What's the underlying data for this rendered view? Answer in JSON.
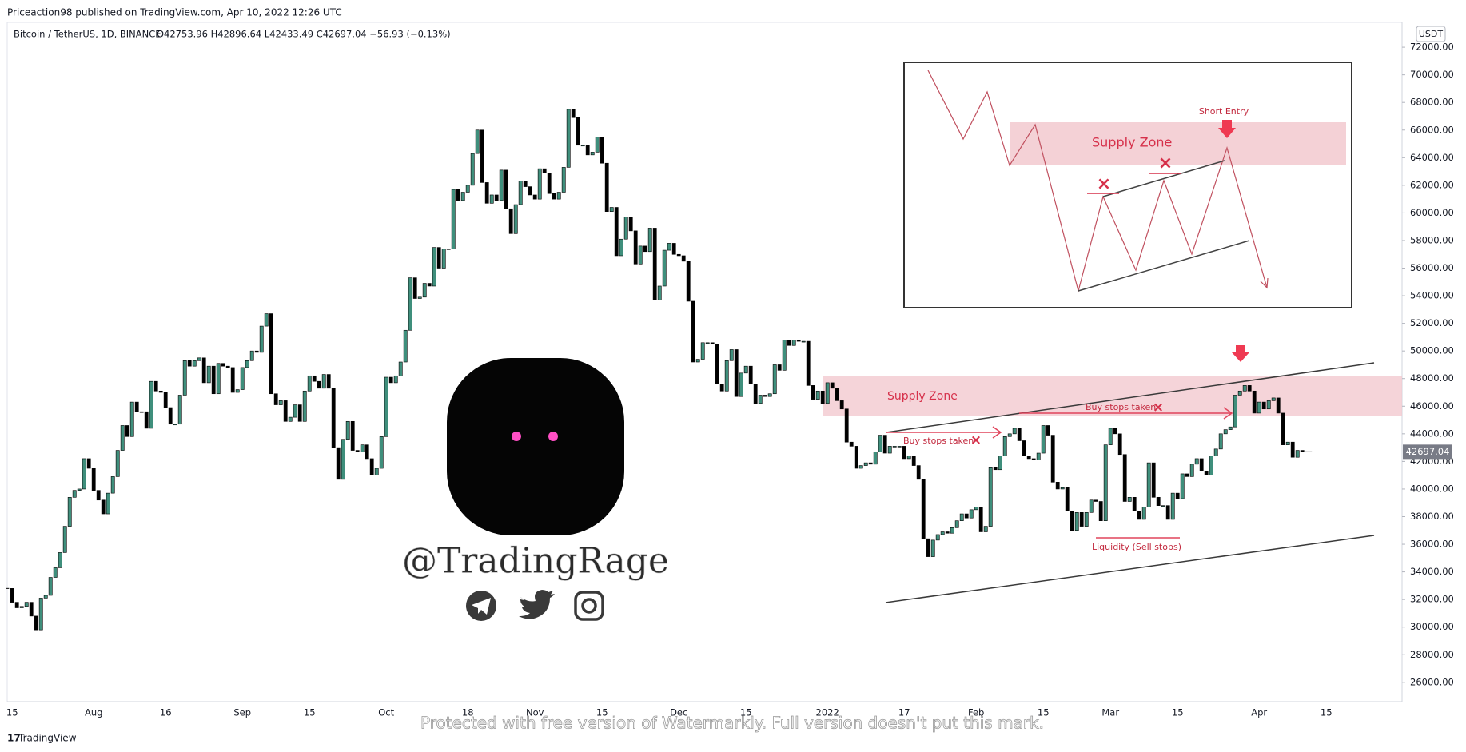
{
  "header": {
    "publisher": "Priceaction98 published on TradingView.com, Apr 10, 2022 12:26 UTC"
  },
  "footer": "TradingView",
  "watermark": "Protected with free version of Watermarkly. Full version doesn't put this mark.",
  "handle": "@TradingRage",
  "inset": {
    "zone": "Supply Zone",
    "entry": "Short Entry"
  },
  "annotations": {
    "zone": "Supply Zone",
    "stops_1": "Buy stops taken",
    "stops_2": "Buy stops taken",
    "liquidity": "Liquidity (Sell stops)"
  },
  "chart_data": {
    "type": "candlestick",
    "title": "Bitcoin / TetherUS, 1D, BINANCE",
    "subtitle": "O42753.96 H42896.64 L42433.49 C42697.04 −56.93 (−0.13%)",
    "currency": "USDT",
    "up_color": "#3f8f7c",
    "down_color": "#000000",
    "grid": false,
    "categories": [
      null,
      "15",
      null,
      null,
      null,
      null,
      null,
      null,
      null,
      null,
      null,
      null,
      null,
      null,
      null,
      null,
      null,
      null,
      "Aug",
      null,
      null,
      null,
      null,
      null,
      null,
      null,
      null,
      null,
      null,
      null,
      null,
      null,
      null,
      "16",
      null,
      null,
      null,
      null,
      null,
      null,
      null,
      null,
      null,
      null,
      null,
      null,
      null,
      null,
      null,
      "Sep",
      null,
      null,
      null,
      null,
      null,
      null,
      null,
      null,
      null,
      null,
      null,
      null,
      null,
      "15",
      null,
      null,
      null,
      null,
      null,
      null,
      null,
      null,
      null,
      null,
      null,
      null,
      null,
      null,
      null,
      "Oct",
      null,
      null,
      null,
      null,
      null,
      null,
      null,
      null,
      null,
      null,
      null,
      null,
      null,
      null,
      null,
      null,
      "18",
      null,
      null,
      null,
      null,
      null,
      null,
      null,
      null,
      null,
      null,
      null,
      null,
      null,
      "Nov",
      null,
      null,
      null,
      null,
      null,
      null,
      null,
      null,
      null,
      null,
      null,
      null,
      null,
      "15",
      null,
      null,
      null,
      null,
      null,
      null,
      null,
      null,
      null,
      null,
      null,
      null,
      null,
      null,
      null,
      "Dec",
      null,
      null,
      null,
      null,
      null,
      null,
      null,
      null,
      null,
      null,
      null,
      null,
      null,
      "15",
      null,
      null,
      null,
      null,
      null,
      null,
      null,
      null,
      null,
      null,
      null,
      null,
      null,
      null,
      null,
      null,
      "2022",
      null,
      null,
      null,
      null,
      null,
      null,
      null,
      null,
      null,
      null,
      null,
      null,
      null,
      null,
      null,
      "17",
      null,
      null,
      null,
      null,
      null,
      null,
      null,
      null,
      null,
      null,
      null,
      null,
      null,
      null,
      "Feb",
      null,
      null,
      null,
      null,
      null,
      null,
      null,
      null,
      null,
      null,
      null,
      null,
      null,
      "15",
      null,
      null,
      null,
      null,
      null,
      null,
      null,
      null,
      null,
      null,
      null,
      null,
      null,
      "Mar",
      null,
      null,
      null,
      null,
      null,
      null,
      null,
      null,
      null,
      null,
      null,
      null,
      null,
      "15",
      null,
      null,
      null,
      null,
      null,
      null,
      null,
      null,
      null,
      null,
      null,
      null,
      null,
      null,
      null,
      null,
      "Apr",
      null,
      null,
      null,
      null,
      null,
      null,
      null,
      null,
      null,
      null,
      null,
      null,
      null,
      "15"
    ],
    "values": [
      32800,
      31800,
      31400,
      31500,
      31800,
      30800,
      29800,
      32100,
      32300,
      33600,
      34300,
      35400,
      37300,
      39400,
      39900,
      40000,
      42200,
      41500,
      39900,
      39200,
      38200,
      39700,
      40900,
      42800,
      44600,
      43800,
      46300,
      45600,
      45600,
      44400,
      47800,
      47100,
      47000,
      45900,
      44700,
      44700,
      46800,
      49300,
      48900,
      49300,
      49500,
      47700,
      48900,
      46900,
      49100,
      48900,
      48800,
      47000,
      47200,
      48800,
      49300,
      50000,
      49900,
      51800,
      52700,
      46900,
      46100,
      46400,
      44900,
      45200,
      46100,
      44900,
      47100,
      48200,
      47800,
      47300,
      48300,
      47300,
      43000,
      40700,
      43600,
      44900,
      42800,
      42700,
      43200,
      42200,
      41000,
      41500,
      43800,
      48100,
      47700,
      48200,
      49200,
      51500,
      55300,
      53800,
      53900,
      54900,
      54700,
      57500,
      56000,
      57400,
      57400,
      61700,
      60900,
      61500,
      62000,
      64300,
      66000,
      62200,
      60700,
      61300,
      60900,
      63100,
      60300,
      58500,
      60600,
      62300,
      61900,
      61300,
      61000,
      63200,
      62900,
      61400,
      61000,
      61500,
      63300,
      67500,
      66900,
      64900,
      64900,
      64200,
      64400,
      65500,
      63600,
      60100,
      60400,
      56900,
      58100,
      59700,
      58700,
      56300,
      57600,
      57200,
      58900,
      53700,
      54700,
      57300,
      57800,
      57000,
      56900,
      56500,
      53600,
      49200,
      49400,
      50600,
      50600,
      50500,
      47600,
      47100,
      49300,
      50100,
      46700,
      48400,
      48900,
      47600,
      46200,
      46800,
      46700,
      46900,
      49000,
      48600,
      50800,
      50400,
      50800,
      50700,
      50700,
      47500,
      46500,
      47100,
      46200,
      47700,
      47300,
      46400,
      45800,
      43400,
      43100,
      41500,
      41700,
      41900,
      41800,
      42700,
      43900,
      42600,
      43100,
      43100,
      43100,
      42200,
      42400,
      41700,
      40700,
      36400,
      35100,
      36300,
      36700,
      36900,
      36800,
      37200,
      37700,
      38200,
      37900,
      38500,
      38700,
      36900,
      37300,
      41600,
      41400,
      42400,
      43800,
      44000,
      44400,
      43500,
      42400,
      42200,
      42100,
      42600,
      44600,
      43900,
      40500,
      40000,
      40100,
      38400,
      37000,
      38300,
      37300,
      38300,
      39200,
      39100,
      37700,
      43200,
      44400,
      44000,
      42500,
      39100,
      39400,
      38400,
      37800,
      38700,
      41900,
      39400,
      38800,
      38800,
      37800,
      39700,
      39300,
      41100,
      40900,
      41800,
      42200,
      41300,
      41000,
      42400,
      42900,
      44000,
      44300,
      44500,
      46800,
      47100,
      47500,
      47100,
      45500,
      46300,
      45800,
      46400,
      46600,
      45500,
      43200,
      43400,
      42300,
      42800,
      42697.04,
      null,
      null,
      null,
      null,
      null
    ],
    "ylim": [
      24600,
      73800
    ],
    "yticks": [
      {
        "value": 26000,
        "label": "26000.00"
      },
      {
        "value": 28000,
        "label": "28000.00"
      },
      {
        "value": 30000,
        "label": "30000.00"
      },
      {
        "value": 32000,
        "label": "32000.00"
      },
      {
        "value": 34000,
        "label": "34000.00"
      },
      {
        "value": 36000,
        "label": "36000.00"
      },
      {
        "value": 38000,
        "label": "38000.00"
      },
      {
        "value": 40000,
        "label": "40000.00"
      },
      {
        "value": 42000,
        "label": "42000.00"
      },
      {
        "value": 44000,
        "label": "44000.00"
      },
      {
        "value": 46000,
        "label": "46000.00"
      },
      {
        "value": 48000,
        "label": "48000.00"
      },
      {
        "value": 50000,
        "label": "50000.00"
      },
      {
        "value": 52000,
        "label": "52000.00"
      },
      {
        "value": 54000,
        "label": "54000.00"
      },
      {
        "value": 56000,
        "label": "56000.00"
      },
      {
        "value": 58000,
        "label": "58000.00"
      },
      {
        "value": 60000,
        "label": "60000.00"
      },
      {
        "value": 62000,
        "label": "62000.00"
      },
      {
        "value": 64000,
        "label": "64000.00"
      },
      {
        "value": 66000,
        "label": "66000.00"
      },
      {
        "value": 68000,
        "label": "68000.00"
      },
      {
        "value": 70000,
        "label": "70000.00"
      },
      {
        "value": 72000,
        "label": "72000.00"
      }
    ]
  }
}
